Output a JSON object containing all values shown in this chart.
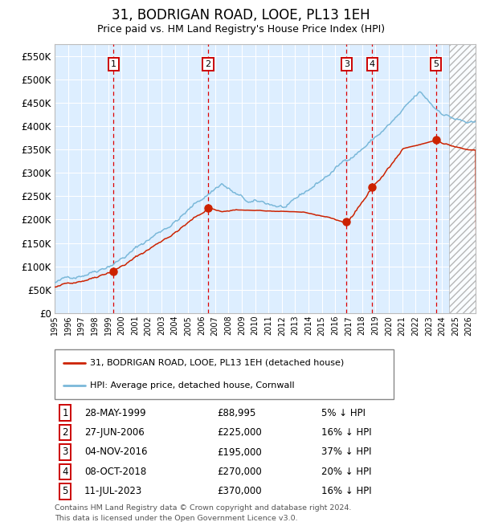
{
  "title": "31, BODRIGAN ROAD, LOOE, PL13 1EH",
  "subtitle": "Price paid vs. HM Land Registry's House Price Index (HPI)",
  "ylim": [
    0,
    575000
  ],
  "yticks": [
    0,
    50000,
    100000,
    150000,
    200000,
    250000,
    300000,
    350000,
    400000,
    450000,
    500000,
    550000
  ],
  "ytick_labels": [
    "£0",
    "£50K",
    "£100K",
    "£150K",
    "£200K",
    "£250K",
    "£300K",
    "£350K",
    "£400K",
    "£450K",
    "£500K",
    "£550K"
  ],
  "xlim_start": 1995.0,
  "xlim_end": 2026.5,
  "sale_dates_decimal": [
    1999.41,
    2006.49,
    2016.84,
    2018.77,
    2023.53
  ],
  "sale_prices": [
    88995,
    225000,
    195000,
    270000,
    370000
  ],
  "sale_labels": [
    "1",
    "2",
    "3",
    "4",
    "5"
  ],
  "legend_line1": "31, BODRIGAN ROAD, LOOE, PL13 1EH (detached house)",
  "legend_line2": "HPI: Average price, detached house, Cornwall",
  "table_data": [
    [
      "1",
      "28-MAY-1999",
      "£88,995",
      "5% ↓ HPI"
    ],
    [
      "2",
      "27-JUN-2006",
      "£225,000",
      "16% ↓ HPI"
    ],
    [
      "3",
      "04-NOV-2016",
      "£195,000",
      "37% ↓ HPI"
    ],
    [
      "4",
      "08-OCT-2018",
      "£270,000",
      "20% ↓ HPI"
    ],
    [
      "5",
      "11-JUL-2023",
      "£370,000",
      "16% ↓ HPI"
    ]
  ],
  "footnote1": "Contains HM Land Registry data © Crown copyright and database right 2024.",
  "footnote2": "This data is licensed under the Open Government Licence v3.0.",
  "hpi_color": "#7ab8d9",
  "price_color": "#cc2200",
  "background_color": "#ddeeff",
  "vline_color": "#dd0000",
  "hatch_start": 2024.5,
  "seed": 42
}
